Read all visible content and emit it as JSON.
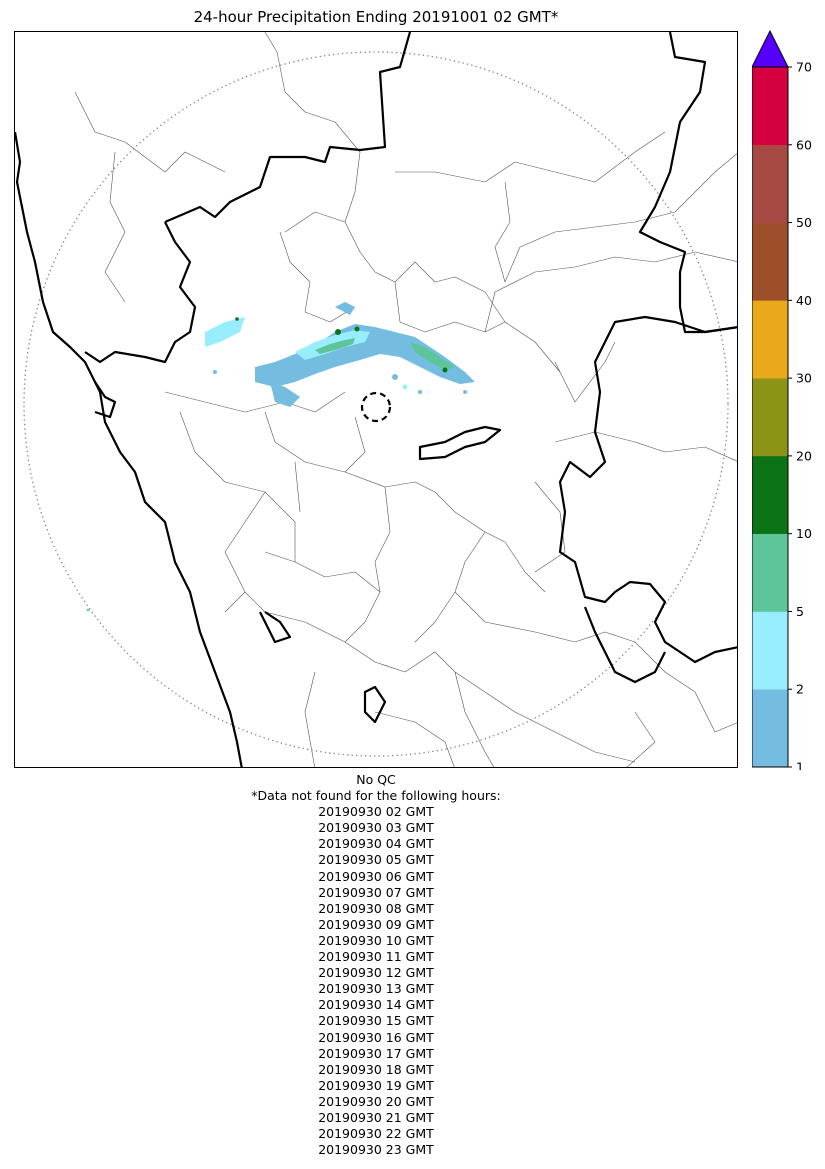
{
  "title": "24-hour Precipitation Ending 20191001 02 GMT*",
  "footer": {
    "qc_note": "No QC",
    "missing_header": "*Data not found for the following hours:",
    "missing_hours": [
      "20190930 02 GMT",
      "20190930 03 GMT",
      "20190930 04 GMT",
      "20190930 05 GMT",
      "20190930 06 GMT",
      "20190930 07 GMT",
      "20190930 08 GMT",
      "20190930 09 GMT",
      "20190930 10 GMT",
      "20190930 11 GMT",
      "20190930 12 GMT",
      "20190930 13 GMT",
      "20190930 14 GMT",
      "20190930 15 GMT",
      "20190930 16 GMT",
      "20190930 17 GMT",
      "20190930 18 GMT",
      "20190930 19 GMT",
      "20190930 20 GMT",
      "20190930 21 GMT",
      "20190930 22 GMT",
      "20190930 23 GMT"
    ]
  },
  "colorbar": {
    "extend": "max",
    "extend_color": "#5500ff",
    "bins": [
      {
        "min": 1,
        "max": 2,
        "color": "#74bde0"
      },
      {
        "min": 2,
        "max": 5,
        "color": "#98eefe"
      },
      {
        "min": 5,
        "max": 10,
        "color": "#5ec49a"
      },
      {
        "min": 10,
        "max": 20,
        "color": "#0d7317"
      },
      {
        "min": 20,
        "max": 30,
        "color": "#8c9415"
      },
      {
        "min": 30,
        "max": 40,
        "color": "#e9a91b"
      },
      {
        "min": 40,
        "max": 50,
        "color": "#9c4f29"
      },
      {
        "min": 50,
        "max": 60,
        "color": "#a64942"
      },
      {
        "min": 60,
        "max": 70,
        "color": "#d5003f"
      }
    ],
    "tick_labels": [
      "1",
      "2",
      "5",
      "10",
      "20",
      "30",
      "40",
      "50",
      "60",
      "70"
    ]
  }
}
